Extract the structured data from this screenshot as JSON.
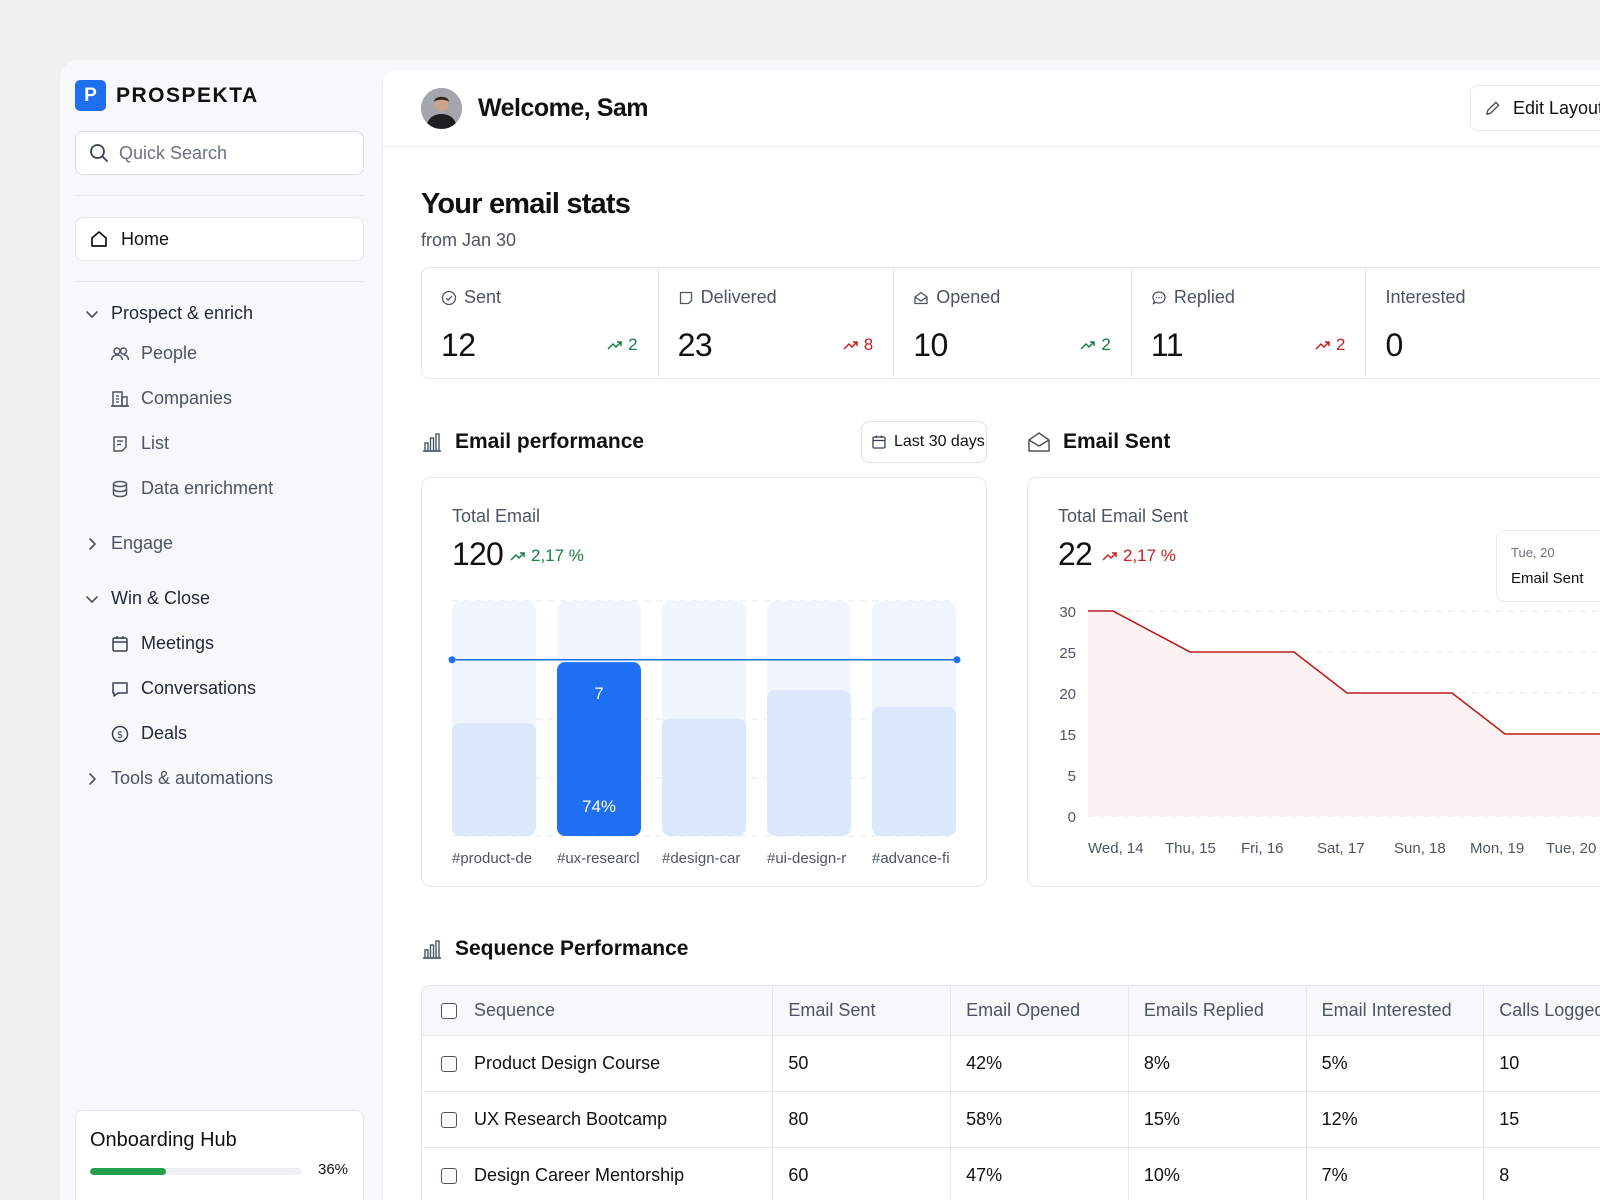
{
  "brand": {
    "logo_letter": "P",
    "name": "PROSPEKTA"
  },
  "search": {
    "placeholder": "Quick Search"
  },
  "sidebar": {
    "home": "Home",
    "groups": [
      {
        "label": "Prospect & enrich",
        "expanded": true,
        "items": [
          "People",
          "Companies",
          "List",
          "Data enrichment"
        ]
      },
      {
        "label": "Engage",
        "expanded": false,
        "items": []
      },
      {
        "label": "Win & Close",
        "expanded": true,
        "items": [
          "Meetings",
          "Conversations",
          "Deals"
        ]
      },
      {
        "label": "Tools & automations",
        "expanded": false,
        "items": []
      }
    ],
    "onboarding": {
      "title": "Onboarding Hub",
      "progress_label": "36%",
      "progress": 0.36
    }
  },
  "header": {
    "welcome": "Welcome, Sam",
    "edit_layout": "Edit Layout"
  },
  "stats": {
    "title": "Your email stats",
    "subtitle": "from Jan 30",
    "items": [
      {
        "label": "Sent",
        "value": "12",
        "delta": "2",
        "trend": "green",
        "icon": "check-circle-icon"
      },
      {
        "label": "Delivered",
        "value": "23",
        "delta": "8",
        "trend": "red",
        "icon": "inbox-icon"
      },
      {
        "label": "Opened",
        "value": "10",
        "delta": "2",
        "trend": "green",
        "icon": "mail-open-icon"
      },
      {
        "label": "Replied",
        "value": "11",
        "delta": "2",
        "trend": "red",
        "icon": "chat-icon"
      },
      {
        "label": "Interested",
        "value": "0",
        "delta": "",
        "trend": "",
        "icon": ""
      }
    ]
  },
  "performance": {
    "title": "Email performance",
    "range": "Last 30 days",
    "card_label": "Total Email",
    "total": "120",
    "delta": "2,17 %",
    "chart_data": {
      "type": "bar",
      "categories": [
        "#product-de",
        "#ux-researcl",
        "#design-car",
        "#ui-design-r",
        "#advance-fi"
      ],
      "values": [
        0.48,
        0.74,
        0.5,
        0.62,
        0.55
      ],
      "highlight_index": 1,
      "highlight_value_label": "7",
      "highlight_pct_label": "74%",
      "reference_line": 0.75
    }
  },
  "email_sent": {
    "title": "Email Sent",
    "card_label": "Total Email Sent",
    "total": "22",
    "delta": "2,17 %",
    "tooltip": {
      "date": "Tue, 20",
      "label": "Email Sent"
    },
    "chart_data": {
      "type": "area",
      "x": [
        "Wed, 14",
        "Thu, 15",
        "Fri, 16",
        "Sat, 17",
        "Sun, 18",
        "Mon, 19",
        "Tue, 20"
      ],
      "y_ticks": [
        "30",
        "25",
        "20",
        "15",
        "5",
        "0"
      ],
      "y": [
        30,
        25,
        25,
        20,
        20,
        15,
        15
      ],
      "color": "#b91c1c",
      "fill": "#fdf2f2"
    }
  },
  "sequence": {
    "title": "Sequence Performance",
    "columns": [
      "Sequence",
      "Email Sent",
      "Email Opened",
      "Emails Replied",
      "Email Interested",
      "Calls Logged"
    ],
    "rows": [
      [
        "Product Design Course",
        "50",
        "42%",
        "8%",
        "5%",
        "10"
      ],
      [
        "UX Research Bootcamp",
        "80",
        "58%",
        "15%",
        "12%",
        "15"
      ],
      [
        "Design Career Mentorship",
        "60",
        "47%",
        "10%",
        "7%",
        "8"
      ]
    ]
  },
  "colors": {
    "accent": "#1f6ff2",
    "green": "#15803d",
    "red": "#c81e1e",
    "progress": "#22a04b"
  }
}
